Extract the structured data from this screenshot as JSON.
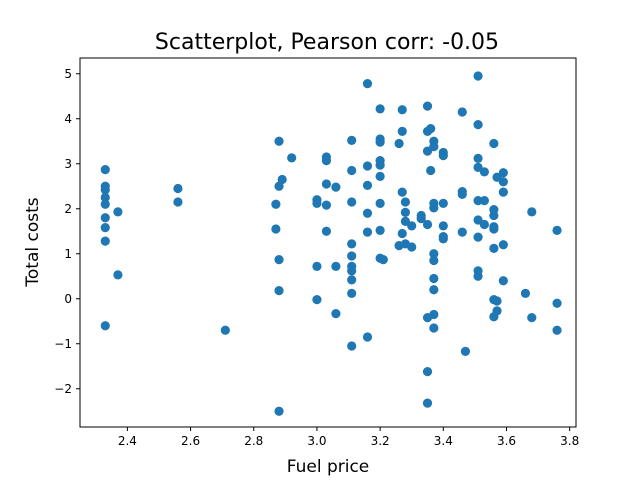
{
  "chart_data": {
    "type": "scatter",
    "title": "Scatterplot, Pearson corr: -0.05",
    "xlabel": "Fuel price",
    "ylabel": "Total costs",
    "xlim": [
      2.25,
      3.82
    ],
    "ylim": [
      -2.85,
      5.35
    ],
    "xticks": [
      2.4,
      2.6,
      2.8,
      3.0,
      3.2,
      3.4,
      3.6,
      3.8
    ],
    "xtick_labels": [
      "2.4",
      "2.6",
      "2.8",
      "3.0",
      "3.2",
      "3.4",
      "3.6",
      "3.8"
    ],
    "yticks": [
      -2,
      -1,
      0,
      1,
      2,
      3,
      4,
      5
    ],
    "ytick_labels": [
      "−2",
      "−1",
      "0",
      "1",
      "2",
      "3",
      "4",
      "5"
    ],
    "grid": false,
    "marker_color": "#1f77b4",
    "points": [
      {
        "x": 2.33,
        "y": 2.87
      },
      {
        "x": 2.33,
        "y": 2.5
      },
      {
        "x": 2.33,
        "y": 2.42
      },
      {
        "x": 2.33,
        "y": 2.25
      },
      {
        "x": 2.33,
        "y": 2.1
      },
      {
        "x": 2.33,
        "y": 1.8
      },
      {
        "x": 2.33,
        "y": 1.58
      },
      {
        "x": 2.33,
        "y": 1.28
      },
      {
        "x": 2.33,
        "y": -0.6
      },
      {
        "x": 2.37,
        "y": 1.93
      },
      {
        "x": 2.37,
        "y": 0.53
      },
      {
        "x": 2.56,
        "y": 2.45
      },
      {
        "x": 2.56,
        "y": 2.15
      },
      {
        "x": 2.71,
        "y": -0.7
      },
      {
        "x": 2.87,
        "y": 2.1
      },
      {
        "x": 2.87,
        "y": 1.55
      },
      {
        "x": 2.88,
        "y": 3.5
      },
      {
        "x": 2.88,
        "y": 2.5
      },
      {
        "x": 2.88,
        "y": 0.87
      },
      {
        "x": 2.88,
        "y": 0.18
      },
      {
        "x": 2.88,
        "y": -2.5
      },
      {
        "x": 2.89,
        "y": 2.65
      },
      {
        "x": 2.92,
        "y": 3.13
      },
      {
        "x": 3.0,
        "y": 2.2
      },
      {
        "x": 3.0,
        "y": 2.12
      },
      {
        "x": 3.0,
        "y": 0.72
      },
      {
        "x": 3.0,
        "y": -0.02
      },
      {
        "x": 3.03,
        "y": 3.15
      },
      {
        "x": 3.03,
        "y": 3.07
      },
      {
        "x": 3.03,
        "y": 2.55
      },
      {
        "x": 3.03,
        "y": 2.08
      },
      {
        "x": 3.03,
        "y": 1.5
      },
      {
        "x": 3.06,
        "y": 2.48
      },
      {
        "x": 3.06,
        "y": 0.72
      },
      {
        "x": 3.06,
        "y": -0.33
      },
      {
        "x": 3.11,
        "y": 3.52
      },
      {
        "x": 3.11,
        "y": 2.85
      },
      {
        "x": 3.11,
        "y": 2.15
      },
      {
        "x": 3.11,
        "y": 1.22
      },
      {
        "x": 3.11,
        "y": 0.95
      },
      {
        "x": 3.11,
        "y": 0.72
      },
      {
        "x": 3.11,
        "y": 0.62
      },
      {
        "x": 3.11,
        "y": 0.42
      },
      {
        "x": 3.11,
        "y": 0.12
      },
      {
        "x": 3.11,
        "y": -1.05
      },
      {
        "x": 3.16,
        "y": 4.78
      },
      {
        "x": 3.16,
        "y": 2.95
      },
      {
        "x": 3.16,
        "y": 2.52
      },
      {
        "x": 3.16,
        "y": 1.9
      },
      {
        "x": 3.16,
        "y": 1.48
      },
      {
        "x": 3.16,
        "y": -0.85
      },
      {
        "x": 3.2,
        "y": 4.22
      },
      {
        "x": 3.2,
        "y": 3.55
      },
      {
        "x": 3.2,
        "y": 3.48
      },
      {
        "x": 3.2,
        "y": 3.07
      },
      {
        "x": 3.2,
        "y": 2.97
      },
      {
        "x": 3.2,
        "y": 2.72
      },
      {
        "x": 3.2,
        "y": 2.12
      },
      {
        "x": 3.2,
        "y": 1.52
      },
      {
        "x": 3.2,
        "y": 0.9
      },
      {
        "x": 3.21,
        "y": 0.87
      },
      {
        "x": 3.26,
        "y": 3.45
      },
      {
        "x": 3.26,
        "y": 1.18
      },
      {
        "x": 3.27,
        "y": 4.2
      },
      {
        "x": 3.27,
        "y": 3.72
      },
      {
        "x": 3.27,
        "y": 2.37
      },
      {
        "x": 3.27,
        "y": 1.45
      },
      {
        "x": 3.28,
        "y": 2.15
      },
      {
        "x": 3.28,
        "y": 1.92
      },
      {
        "x": 3.28,
        "y": 1.72
      },
      {
        "x": 3.28,
        "y": 1.22
      },
      {
        "x": 3.3,
        "y": 1.62
      },
      {
        "x": 3.3,
        "y": 1.15
      },
      {
        "x": 3.33,
        "y": 1.85
      },
      {
        "x": 3.33,
        "y": 1.78
      },
      {
        "x": 3.35,
        "y": 4.28
      },
      {
        "x": 3.35,
        "y": 3.72
      },
      {
        "x": 3.35,
        "y": 3.28
      },
      {
        "x": 3.35,
        "y": 1.65
      },
      {
        "x": 3.35,
        "y": -0.42
      },
      {
        "x": 3.35,
        "y": -1.62
      },
      {
        "x": 3.35,
        "y": -2.32
      },
      {
        "x": 3.36,
        "y": 3.78
      },
      {
        "x": 3.36,
        "y": 2.85
      },
      {
        "x": 3.37,
        "y": 3.5
      },
      {
        "x": 3.37,
        "y": 3.38
      },
      {
        "x": 3.37,
        "y": 2.12
      },
      {
        "x": 3.37,
        "y": 2.02
      },
      {
        "x": 3.37,
        "y": 1.0
      },
      {
        "x": 3.37,
        "y": 0.85
      },
      {
        "x": 3.37,
        "y": 0.45
      },
      {
        "x": 3.37,
        "y": 0.2
      },
      {
        "x": 3.37,
        "y": -0.35
      },
      {
        "x": 3.37,
        "y": -0.65
      },
      {
        "x": 3.4,
        "y": 3.25
      },
      {
        "x": 3.4,
        "y": 3.18
      },
      {
        "x": 3.4,
        "y": 2.12
      },
      {
        "x": 3.4,
        "y": 1.62
      },
      {
        "x": 3.4,
        "y": 1.38
      },
      {
        "x": 3.4,
        "y": 1.33
      },
      {
        "x": 3.46,
        "y": 4.15
      },
      {
        "x": 3.46,
        "y": 2.38
      },
      {
        "x": 3.46,
        "y": 2.32
      },
      {
        "x": 3.46,
        "y": 1.48
      },
      {
        "x": 3.47,
        "y": -1.17
      },
      {
        "x": 3.51,
        "y": 4.95
      },
      {
        "x": 3.51,
        "y": 3.87
      },
      {
        "x": 3.51,
        "y": 3.12
      },
      {
        "x": 3.51,
        "y": 2.92
      },
      {
        "x": 3.51,
        "y": 2.18
      },
      {
        "x": 3.51,
        "y": 1.75
      },
      {
        "x": 3.51,
        "y": 1.37
      },
      {
        "x": 3.51,
        "y": 0.62
      },
      {
        "x": 3.51,
        "y": 0.5
      },
      {
        "x": 3.53,
        "y": 2.82
      },
      {
        "x": 3.53,
        "y": 2.18
      },
      {
        "x": 3.53,
        "y": 1.65
      },
      {
        "x": 3.56,
        "y": 3.45
      },
      {
        "x": 3.56,
        "y": 1.98
      },
      {
        "x": 3.56,
        "y": 1.85
      },
      {
        "x": 3.56,
        "y": 1.6
      },
      {
        "x": 3.56,
        "y": 1.55
      },
      {
        "x": 3.56,
        "y": 1.12
      },
      {
        "x": 3.56,
        "y": -0.02
      },
      {
        "x": 3.56,
        "y": -0.4
      },
      {
        "x": 3.57,
        "y": 2.7
      },
      {
        "x": 3.57,
        "y": -0.05
      },
      {
        "x": 3.57,
        "y": -0.27
      },
      {
        "x": 3.59,
        "y": 2.8
      },
      {
        "x": 3.59,
        "y": 2.6
      },
      {
        "x": 3.59,
        "y": 2.37
      },
      {
        "x": 3.59,
        "y": 1.2
      },
      {
        "x": 3.59,
        "y": 0.4
      },
      {
        "x": 3.66,
        "y": 0.12
      },
      {
        "x": 3.68,
        "y": 1.93
      },
      {
        "x": 3.68,
        "y": -0.42
      },
      {
        "x": 3.76,
        "y": 1.52
      },
      {
        "x": 3.76,
        "y": -0.1
      },
      {
        "x": 3.76,
        "y": -0.7
      }
    ]
  }
}
